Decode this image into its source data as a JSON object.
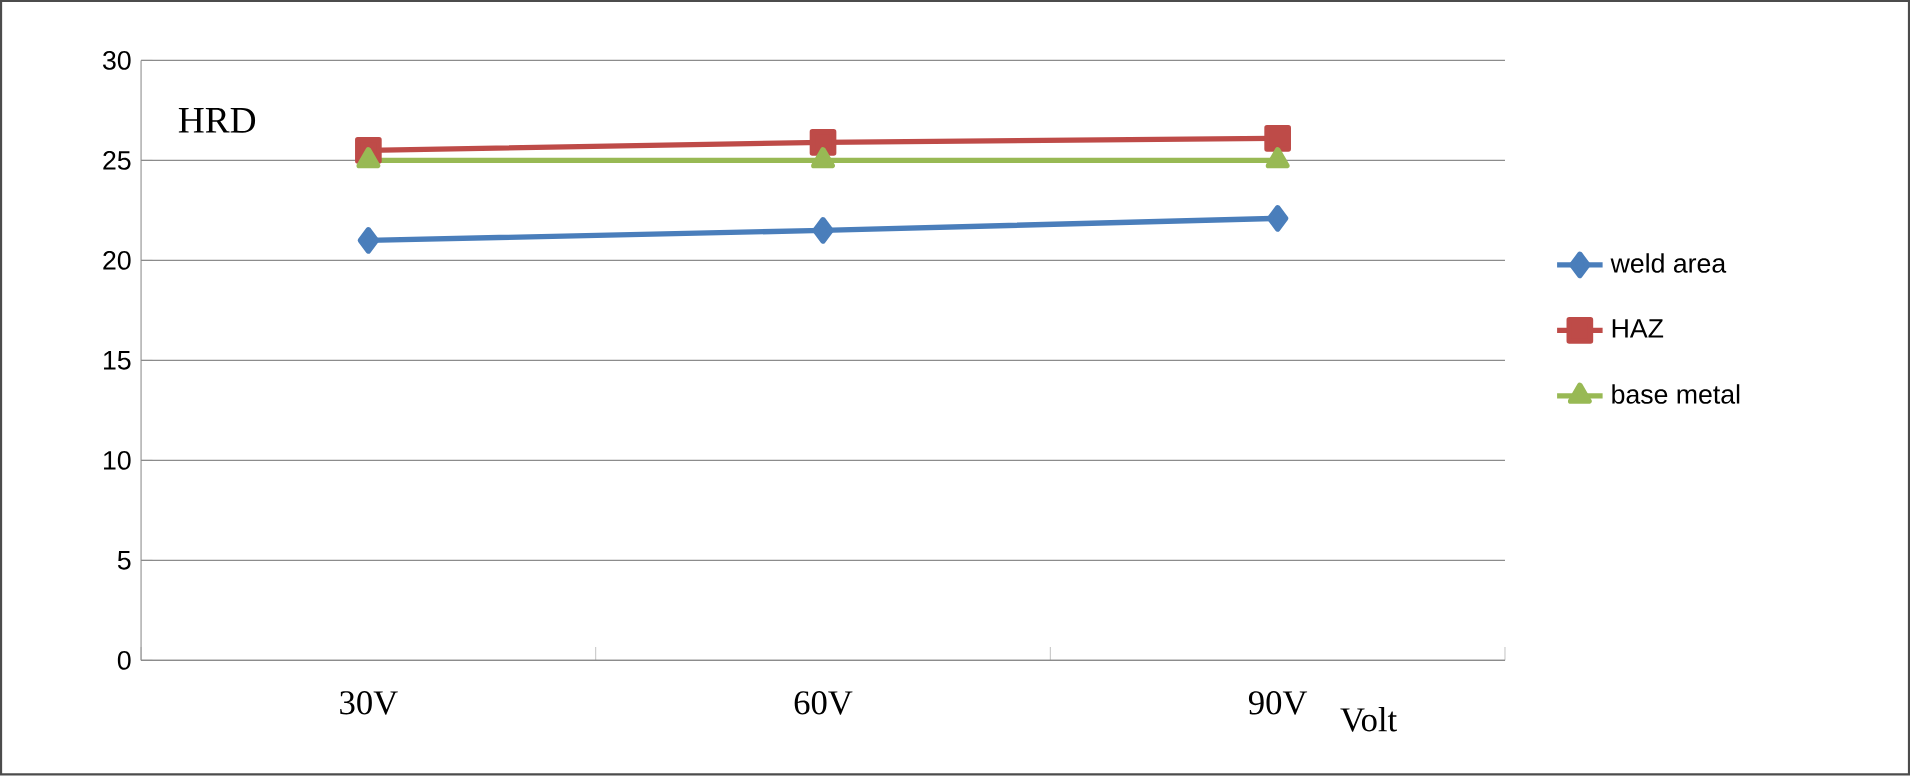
{
  "chart_data": {
    "type": "line",
    "ylabel": "HRD",
    "xlabel": "Volt",
    "categories": [
      "30V",
      "60V",
      "90V"
    ],
    "series": [
      {
        "name": "weld area",
        "color": "#4a7ebb",
        "marker": "diamond",
        "values": [
          21,
          21.5,
          22.1
        ]
      },
      {
        "name": "HAZ",
        "color": "#be4b48",
        "marker": "square",
        "values": [
          25.5,
          25.9,
          26.1
        ]
      },
      {
        "name": "base metal",
        "color": "#98b954",
        "marker": "triangle",
        "values": [
          25,
          25,
          25
        ]
      }
    ],
    "ylim": [
      0,
      30
    ],
    "yticks": [
      0,
      5,
      10,
      15,
      20,
      25,
      30
    ],
    "grid": "y",
    "legend": "right",
    "line_style": "solid"
  }
}
